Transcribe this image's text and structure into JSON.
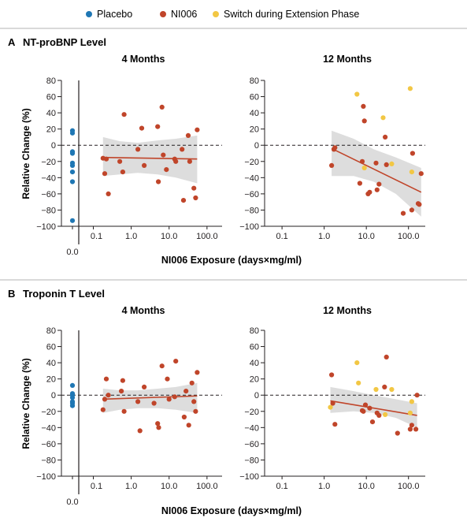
{
  "legend": {
    "items": [
      {
        "label": "Placebo",
        "color": "#1f77b4"
      },
      {
        "label": "NI006",
        "color": "#c0452a"
      },
      {
        "label": "Switch during Extension Phase",
        "color": "#f2c744"
      }
    ]
  },
  "colors": {
    "placebo": "#1f77b4",
    "ni006": "#c0452a",
    "switch": "#f2c744",
    "band": "#dddddd",
    "fit": "#c0452a"
  },
  "x_label": "NI006 Exposure (days×mg/ml)",
  "y_label": "Relative Change (%)",
  "x_ticks": [
    "0.1",
    "1.0",
    "10.0",
    "100.0"
  ],
  "x_zero_tick": "0.0",
  "y_ticks": [
    "80",
    "60",
    "40",
    "20",
    "0",
    "−20",
    "−40",
    "−60",
    "−80",
    "−100"
  ],
  "chart_data": [
    {
      "type": "scatter",
      "panel_letter": "A",
      "panel_title": "NT-proBNP Level",
      "subtitle": "4 Months",
      "x_scale": "log",
      "xlim": [
        0.05,
        250
      ],
      "ylim": [
        -100,
        80
      ],
      "placebo": [
        18,
        15,
        -8,
        -10,
        -22,
        -25,
        -33,
        -45,
        -93
      ],
      "ni006": [
        [
          0.18,
          -16
        ],
        [
          0.2,
          -35
        ],
        [
          0.22,
          -17
        ],
        [
          0.25,
          -60
        ],
        [
          0.5,
          -20
        ],
        [
          0.6,
          -33
        ],
        [
          0.65,
          38
        ],
        [
          1.5,
          -5
        ],
        [
          1.9,
          21
        ],
        [
          2.2,
          -25
        ],
        [
          5.0,
          23
        ],
        [
          5.2,
          -45
        ],
        [
          6.5,
          47
        ],
        [
          7.0,
          -12
        ],
        [
          8.5,
          -30
        ],
        [
          14,
          -17
        ],
        [
          15,
          -20
        ],
        [
          22,
          -5
        ],
        [
          24,
          -68
        ],
        [
          32,
          12
        ],
        [
          35,
          -20
        ],
        [
          45,
          -53
        ],
        [
          50,
          -65
        ],
        [
          55,
          19
        ]
      ],
      "switch": [],
      "fit": {
        "x": [
          0.18,
          55
        ],
        "y": [
          -15,
          -17
        ]
      },
      "band": {
        "x": [
          0.18,
          0.5,
          1.5,
          5,
          15,
          55
        ],
        "upper": [
          10,
          5,
          3,
          6,
          8,
          12
        ],
        "lower": [
          -38,
          -36,
          -34,
          -36,
          -40,
          -47
        ]
      }
    },
    {
      "type": "scatter",
      "panel_letter": "",
      "panel_title": "",
      "subtitle": "12 Months",
      "x_scale": "log",
      "xlim": [
        0.05,
        250
      ],
      "ylim": [
        -100,
        80
      ],
      "placebo": [],
      "ni006": [
        [
          1.5,
          -25
        ],
        [
          1.7,
          -5
        ],
        [
          1.8,
          -3
        ],
        [
          7.0,
          -47
        ],
        [
          8.0,
          -20
        ],
        [
          8.5,
          48
        ],
        [
          9.0,
          30
        ],
        [
          11,
          -60
        ],
        [
          12,
          -58
        ],
        [
          17,
          -22
        ],
        [
          18,
          -55
        ],
        [
          20,
          -48
        ],
        [
          28,
          10
        ],
        [
          30,
          -24
        ],
        [
          75,
          -84
        ],
        [
          120,
          -80
        ],
        [
          125,
          -10
        ],
        [
          170,
          -72
        ],
        [
          180,
          -73
        ],
        [
          200,
          -35
        ]
      ],
      "switch": [
        [
          6.0,
          63
        ],
        [
          9.0,
          -28
        ],
        [
          25,
          34
        ],
        [
          40,
          -23
        ],
        [
          110,
          70
        ],
        [
          120,
          -33
        ]
      ],
      "fit": {
        "x": [
          1.5,
          200
        ],
        "y": [
          -4,
          -58
        ]
      },
      "band": {
        "x": [
          1.5,
          5,
          15,
          50,
          200
        ],
        "upper": [
          18,
          8,
          -5,
          -15,
          -28
        ],
        "lower": [
          -38,
          -38,
          -45,
          -60,
          -88
        ]
      }
    },
    {
      "type": "scatter",
      "panel_letter": "B",
      "panel_title": "Troponin T Level",
      "subtitle": "4 Months",
      "x_scale": "log",
      "xlim": [
        0.05,
        250
      ],
      "ylim": [
        -100,
        80
      ],
      "placebo": [
        12,
        2,
        0,
        -3,
        -8,
        -10,
        -13
      ],
      "ni006": [
        [
          0.18,
          -18
        ],
        [
          0.2,
          -5
        ],
        [
          0.22,
          20
        ],
        [
          0.25,
          0
        ],
        [
          0.55,
          5
        ],
        [
          0.6,
          18
        ],
        [
          0.65,
          -20
        ],
        [
          1.5,
          -8
        ],
        [
          1.7,
          -44
        ],
        [
          2.2,
          10
        ],
        [
          4.0,
          -10
        ],
        [
          5.0,
          -35
        ],
        [
          5.3,
          -40
        ],
        [
          6.5,
          36
        ],
        [
          9.0,
          20
        ],
        [
          10,
          -5
        ],
        [
          14,
          -2
        ],
        [
          15,
          42
        ],
        [
          25,
          -27
        ],
        [
          28,
          5
        ],
        [
          33,
          -37
        ],
        [
          40,
          15
        ],
        [
          45,
          -8
        ],
        [
          50,
          -20
        ],
        [
          55,
          28
        ]
      ],
      "switch": [],
      "fit": {
        "x": [
          0.18,
          55
        ],
        "y": [
          -5,
          -1
        ]
      },
      "band": {
        "x": [
          0.18,
          0.5,
          1.5,
          5,
          15,
          55
        ],
        "upper": [
          8,
          6,
          6,
          8,
          10,
          15
        ],
        "lower": [
          -22,
          -18,
          -16,
          -16,
          -18,
          -22
        ]
      }
    },
    {
      "type": "scatter",
      "panel_letter": "",
      "panel_title": "",
      "subtitle": "12 Months",
      "x_scale": "log",
      "xlim": [
        0.05,
        250
      ],
      "ylim": [
        -100,
        80
      ],
      "placebo": [],
      "ni006": [
        [
          1.5,
          25
        ],
        [
          1.6,
          -10
        ],
        [
          1.8,
          -36
        ],
        [
          8.0,
          -19
        ],
        [
          8.5,
          -20
        ],
        [
          9.5,
          -12
        ],
        [
          12,
          -16
        ],
        [
          14,
          -33
        ],
        [
          18,
          -22
        ],
        [
          20,
          -25
        ],
        [
          27,
          10
        ],
        [
          30,
          47
        ],
        [
          55,
          -47
        ],
        [
          110,
          -42
        ],
        [
          120,
          -37
        ],
        [
          150,
          -42
        ],
        [
          160,
          0
        ]
      ],
      "switch": [
        [
          1.4,
          -15
        ],
        [
          6.0,
          40
        ],
        [
          6.5,
          15
        ],
        [
          17,
          7
        ],
        [
          28,
          -24
        ],
        [
          40,
          7
        ],
        [
          110,
          -22
        ],
        [
          120,
          -8
        ]
      ],
      "fit": {
        "x": [
          1.4,
          160
        ],
        "y": [
          -7,
          -25
        ]
      },
      "band": {
        "x": [
          1.4,
          5,
          15,
          50,
          160
        ],
        "upper": [
          10,
          5,
          0,
          -5,
          -10
        ],
        "lower": [
          -22,
          -20,
          -22,
          -28,
          -40
        ]
      }
    }
  ]
}
